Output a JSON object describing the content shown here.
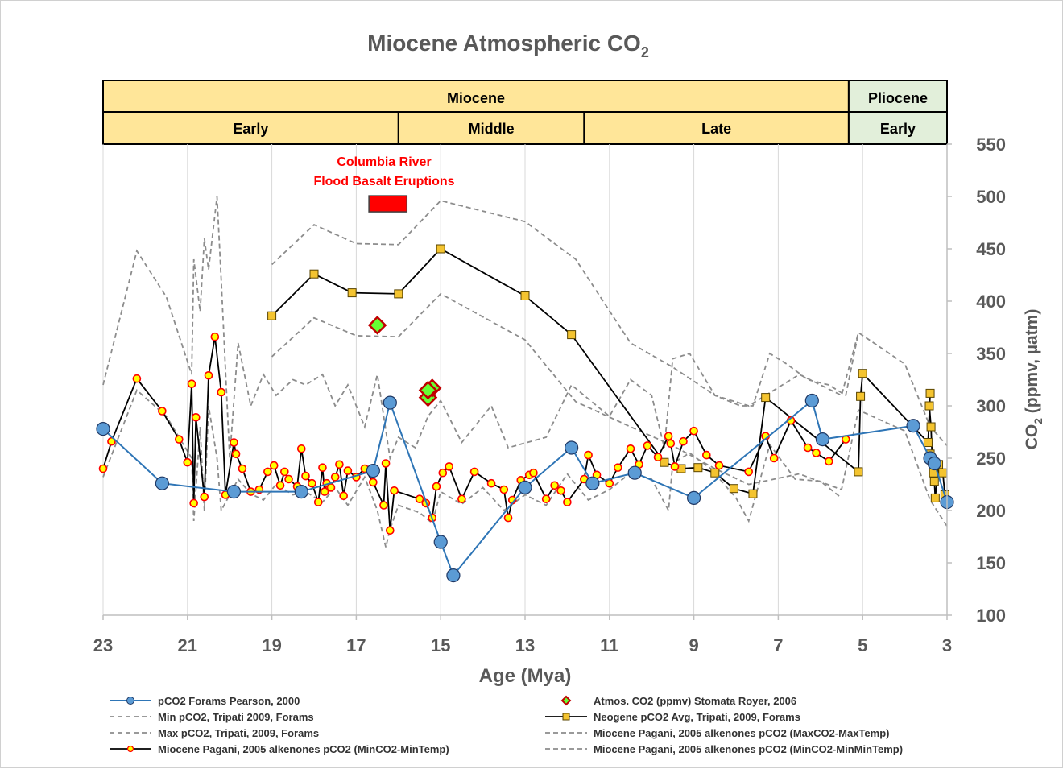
{
  "chart_data": {
    "type": "line",
    "title_main": "Miocene Atmospheric CO",
    "title_sub": "2",
    "xlabel": "Age (Mya)",
    "ylabel_main": "CO",
    "ylabel_sub": "2",
    "ylabel_rest": " (ppmv, µatm)",
    "xlim": [
      23,
      3
    ],
    "ylim": [
      100,
      550
    ],
    "x_ticks": [
      "23",
      "21",
      "19",
      "17",
      "15",
      "13",
      "11",
      "9",
      "7",
      "5",
      "3"
    ],
    "y_ticks": [
      "100",
      "150",
      "200",
      "250",
      "300",
      "350",
      "400",
      "450",
      "500",
      "550"
    ],
    "epochs": [
      {
        "label": "Miocene",
        "from": 23,
        "to": 5.33
      },
      {
        "label": "Pliocene",
        "from": 5.33,
        "to": 3
      }
    ],
    "stages": [
      {
        "label": "Early",
        "from": 23,
        "to": 16
      },
      {
        "label": "Middle",
        "from": 16,
        "to": 11.6
      },
      {
        "label": "Late",
        "from": 11.6,
        "to": 5.33
      },
      {
        "label": "Early",
        "from": 5.33,
        "to": 3
      }
    ],
    "annotation": {
      "line1": "Columbia River",
      "line2": "Flood Basalt Eruptions",
      "x_from": 16.7,
      "x_to": 15.8,
      "y": 493
    },
    "series": [
      {
        "name": "pCO2 Forams Pearson, 2000",
        "style": "pearson",
        "color": "#2e75b6",
        "x": [
          23,
          21.6,
          19.9,
          18.3,
          16.6,
          16.2,
          15.0,
          14.7,
          13.0,
          11.9,
          11.4,
          10.4,
          9.0,
          6.2,
          5.95,
          3.8,
          3.4,
          3.3,
          3.0
        ],
        "y": [
          278,
          226,
          218,
          218,
          238,
          303,
          170,
          138,
          222,
          260,
          226,
          236,
          212,
          305,
          268,
          281,
          250,
          245,
          208
        ]
      },
      {
        "name": "Atmos. CO2 (ppmv) Stomata Royer, 2006",
        "style": "royer",
        "color": "#66cc33",
        "x": [
          16.5,
          15.3,
          15.2,
          15.3
        ],
        "y": [
          377,
          308,
          317,
          315
        ]
      },
      {
        "name": "Min pCO2, Tripati 2009, Forams",
        "style": "dash",
        "x": [
          19,
          18,
          17,
          16,
          15,
          13,
          11.8,
          10.5,
          9.5,
          8.5,
          7.7,
          6.5,
          5.5,
          5.1,
          4,
          3.4,
          3.0
        ],
        "y": [
          347,
          384,
          367,
          366,
          407,
          363,
          304,
          280,
          262,
          240,
          225,
          235,
          220,
          296,
          276,
          210,
          185
        ]
      },
      {
        "name": "Neogene pCO2 Avg, Tripati, 2009, Forams",
        "style": "tripati",
        "color": "#e8b92d",
        "x": [
          19,
          18,
          17.1,
          16,
          15,
          13,
          11.9,
          9.7,
          9.3,
          8.9,
          8.5,
          8.05,
          7.6,
          7.3,
          5.1,
          5.05,
          5.0,
          3.45,
          3.4,
          3.42,
          3.38,
          3.35,
          3.4,
          3.32,
          3.3,
          3.28,
          3.2,
          3.1,
          3.05
        ],
        "y": [
          386,
          426,
          408,
          407,
          450,
          405,
          368,
          246,
          240,
          241,
          236,
          221,
          216,
          308,
          237,
          309,
          331,
          265,
          312,
          300,
          280,
          248,
          254,
          236,
          228,
          212,
          244,
          236,
          215
        ]
      },
      {
        "name": "Max pCO2, Tripati, 2009, Forams",
        "style": "dash",
        "x": [
          19,
          18,
          17,
          16,
          15,
          13,
          11.8,
          10.5,
          9.5,
          8.5,
          7.7,
          6.5,
          5.5,
          5.1,
          4,
          3.4,
          3.0
        ],
        "y": [
          435,
          473,
          455,
          454,
          496,
          476,
          440,
          360,
          337,
          310,
          300,
          330,
          310,
          370,
          340,
          280,
          262
        ]
      },
      {
        "name": "Miocene Pagani, 2005 alkenones pCO2 (MaxCO2-MaxTemp)",
        "style": "dash",
        "x": [
          23,
          22.2,
          21.5,
          20.9,
          20.85,
          20.7,
          20.6,
          20.5,
          20.3,
          20.2,
          20.0,
          19.8,
          19.5,
          19.2,
          18.9,
          18.5,
          18.2,
          17.8,
          17.5,
          17.2,
          16.8,
          16.5,
          16.2,
          16.0,
          15.6,
          15.3,
          15.0,
          14.5,
          13.8,
          13.4,
          12.5,
          11.9,
          11.0,
          10.5,
          10.0,
          9.7,
          9.5,
          9.1,
          8.5,
          7.9,
          7.6,
          7.2,
          6.8,
          6.3,
          5.8,
          5.4,
          5.1
        ],
        "y": [
          320,
          448,
          404,
          330,
          440,
          390,
          460,
          430,
          500,
          420,
          250,
          360,
          300,
          330,
          310,
          325,
          320,
          330,
          300,
          320,
          280,
          330,
          250,
          270,
          260,
          290,
          305,
          265,
          300,
          260,
          270,
          320,
          290,
          325,
          310,
          260,
          345,
          350,
          310,
          300,
          300,
          350,
          340,
          325,
          320,
          310,
          370
        ]
      },
      {
        "name": "Miocene Pagani, 2005 alkenones pCO2 (MinCO2-MinTemp)",
        "style": "pagani",
        "color": "#e8b92d",
        "x": [
          23,
          22.8,
          22.2,
          21.6,
          21.2,
          21.0,
          20.9,
          20.85,
          20.8,
          20.6,
          20.5,
          20.35,
          20.2,
          20.1,
          19.9,
          19.85,
          19.7,
          19.5,
          19.3,
          19.1,
          18.95,
          18.8,
          18.7,
          18.6,
          18.4,
          18.3,
          18.2,
          18.05,
          17.9,
          17.8,
          17.75,
          17.7,
          17.6,
          17.5,
          17.4,
          17.3,
          17.2,
          17.0,
          16.8,
          16.6,
          16.35,
          16.3,
          16.2,
          16.1,
          15.5,
          15.35,
          15.2,
          15.1,
          14.95,
          14.8,
          14.5,
          14.2,
          13.8,
          13.5,
          13.4,
          13.3,
          13.1,
          12.9,
          12.8,
          12.5,
          12.3,
          12.15,
          12.0,
          11.6,
          11.5,
          11.3,
          11.0,
          10.8,
          10.5,
          10.3,
          10.1,
          9.85,
          9.6,
          9.55,
          9.45,
          9.25,
          9.0,
          8.7,
          8.4,
          7.7,
          7.3,
          7.1,
          6.7,
          6.3,
          6.1,
          5.8,
          5.4
        ],
        "y": [
          240,
          266,
          326,
          295,
          268,
          246,
          321,
          207,
          289,
          213,
          329,
          366,
          313,
          215,
          265,
          254,
          240,
          218,
          220,
          237,
          243,
          224,
          237,
          230,
          223,
          259,
          233,
          226,
          208,
          241,
          218,
          226,
          222,
          232,
          244,
          214,
          238,
          232,
          240,
          227,
          205,
          245,
          181,
          219,
          211,
          207,
          193,
          223,
          236,
          242,
          211,
          237,
          226,
          220,
          193,
          210,
          229,
          234,
          236,
          211,
          224,
          219,
          208,
          230,
          253,
          234,
          226,
          241,
          259,
          244,
          262,
          251,
          271,
          264,
          242,
          266,
          276,
          253,
          243,
          237,
          271,
          250,
          286,
          260,
          255,
          247,
          268
        ]
      },
      {
        "name": "Miocene Pagani, 2005 alkenones pCO2 (MinCO2-MinMinTemp)",
        "style": "dash",
        "x": [
          23,
          22.2,
          21.5,
          20.9,
          20.85,
          20.7,
          20.6,
          20.5,
          20.3,
          20.2,
          20.0,
          19.8,
          19.5,
          19.2,
          18.9,
          18.5,
          18.2,
          17.8,
          17.5,
          17.2,
          16.8,
          16.5,
          16.3,
          16.2,
          16.0,
          15.5,
          15.2,
          15.0,
          14.5,
          14.0,
          13.5,
          13.0,
          12.5,
          12.0,
          11.5,
          11.0,
          10.5,
          10.0,
          9.6,
          9.5,
          9.1,
          8.6,
          8.0,
          7.7,
          7.2,
          6.6,
          6.0,
          5.5
        ],
        "y": [
          232,
          315,
          290,
          250,
          190,
          280,
          200,
          300,
          250,
          200,
          215,
          230,
          216,
          210,
          225,
          215,
          218,
          208,
          222,
          205,
          232,
          200,
          165,
          182,
          205,
          198,
          188,
          218,
          206,
          222,
          200,
          215,
          205,
          235,
          210,
          220,
          236,
          230,
          200,
          245,
          255,
          240,
          212,
          190,
          263,
          230,
          228,
          212
        ]
      }
    ],
    "legend": [
      {
        "label": "pCO2 Forams Pearson, 2000",
        "style": "pearson"
      },
      {
        "label": "Atmos. CO2 (ppmv) Stomata Royer, 2006",
        "style": "royer"
      },
      {
        "label": "Min pCO2, Tripati 2009, Forams",
        "style": "dash"
      },
      {
        "label": "Neogene pCO2 Avg, Tripati, 2009, Forams",
        "style": "tripati"
      },
      {
        "label": "Max pCO2, Tripati, 2009, Forams",
        "style": "dash"
      },
      {
        "label": "Miocene Pagani, 2005 alkenones pCO2 (MaxCO2-MaxTemp)",
        "style": "dash"
      },
      {
        "label": "Miocene Pagani, 2005 alkenones pCO2 (MinCO2-MinTemp)",
        "style": "pagani"
      },
      {
        "label": "Miocene Pagani, 2005 alkenones pCO2 (MinCO2-MinMinTemp)",
        "style": "dash"
      }
    ],
    "colors": {
      "axis": "#bfbfbf",
      "grid": "#d9d9d9",
      "tick_text": "#595959",
      "dash": "#8c8c8c",
      "line_black": "#000000",
      "band_yellow": "#ffe699",
      "band_green": "#e2efda",
      "annotation": "#ff0000",
      "marker_red": "#ff0000",
      "pearson": "#5b9bd5",
      "pearson_line": "#2e75b6",
      "royer_fill": "#66ff33",
      "royer_edge": "#c00000",
      "tripati_marker": "#f4c430",
      "pagani_marker": "#ffff00"
    }
  }
}
